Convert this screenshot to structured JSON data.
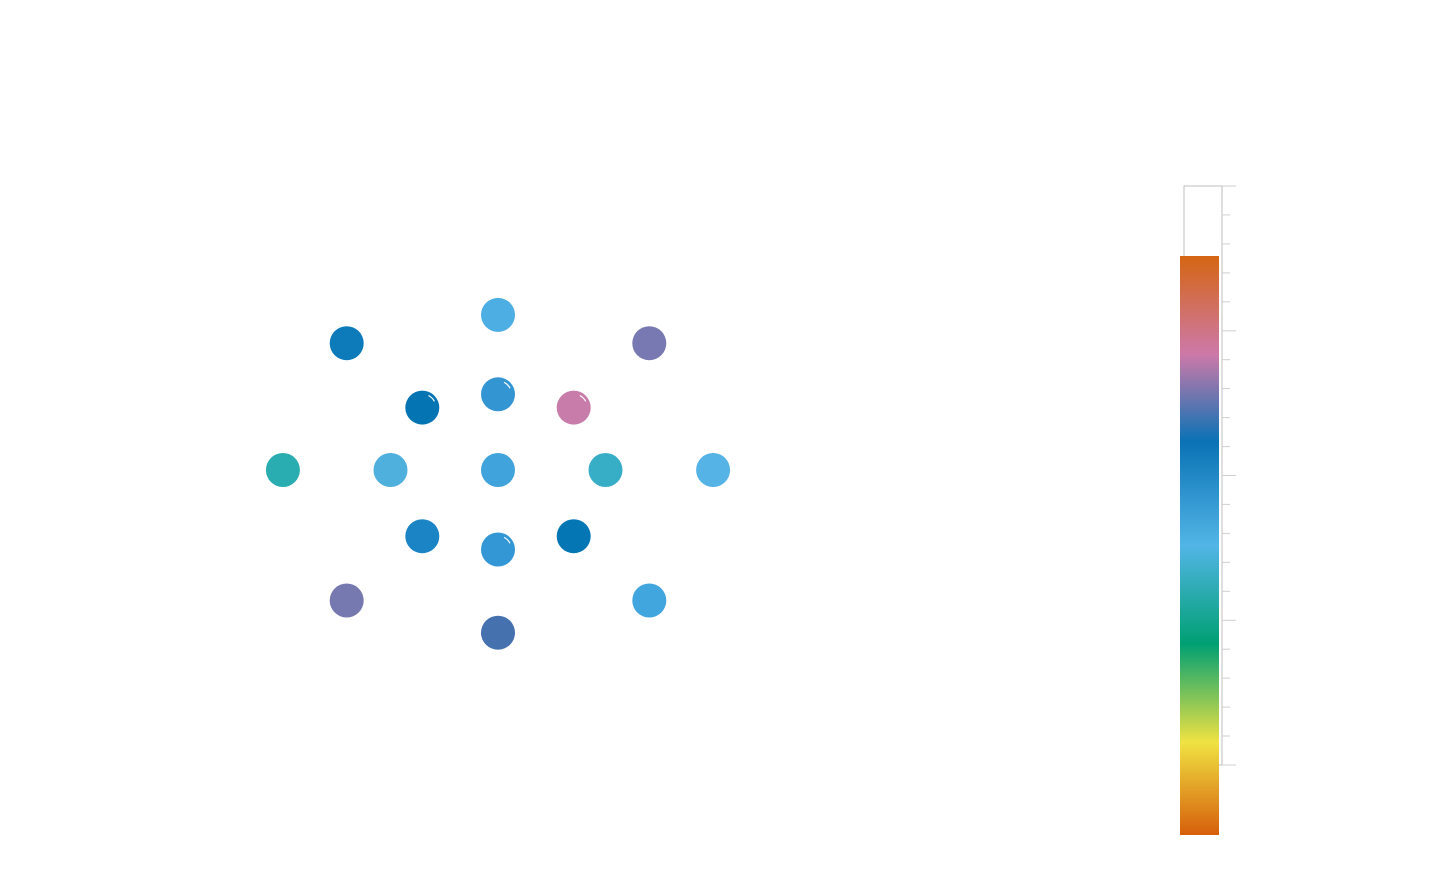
{
  "chart_data": {
    "type": "scatter",
    "title": "",
    "xlabel": "",
    "ylabel": "",
    "grid": false,
    "legend": "none",
    "xlim": [
      -2.3,
      2.3
    ],
    "ylim": [
      -1.85,
      1.85
    ],
    "colorbar": {
      "placement": "right",
      "range": [
        0,
        1
      ],
      "stops": [
        {
          "offset": 0.0,
          "color": "#d56513"
        },
        {
          "offset": 0.17,
          "color": "#cd79a9"
        },
        {
          "offset": 0.32,
          "color": "#0a72b5"
        },
        {
          "offset": 0.5,
          "color": "#52b5e6"
        },
        {
          "offset": 0.67,
          "color": "#00a073"
        },
        {
          "offset": 0.84,
          "color": "#f0e242"
        },
        {
          "offset": 1.0,
          "color": "#d65f0b"
        }
      ]
    },
    "points": [
      {
        "x": 0.0,
        "y": 0.0,
        "value": 0.46,
        "color": "#40a3dc"
      },
      {
        "x": 0.0,
        "y": 0.4,
        "value": 0.44,
        "color": "#3495d3",
        "marker": "ring"
      },
      {
        "x": -0.38,
        "y": 0.33,
        "value": 0.34,
        "color": "#0574b2",
        "marker": "ring"
      },
      {
        "x": 0.38,
        "y": 0.33,
        "value": 0.17,
        "color": "#c77ca9",
        "marker": "ring"
      },
      {
        "x": -0.54,
        "y": 0.0,
        "value": 0.49,
        "color": "#4fb0dd"
      },
      {
        "x": 0.54,
        "y": 0.0,
        "value": 0.56,
        "color": "#38aec6"
      },
      {
        "x": -0.38,
        "y": -0.35,
        "value": 0.38,
        "color": "#1a84c4"
      },
      {
        "x": 0.38,
        "y": -0.35,
        "value": 0.34,
        "color": "#0476b4"
      },
      {
        "x": 0.0,
        "y": -0.42,
        "value": 0.43,
        "color": "#3397d5",
        "marker": "ring"
      },
      {
        "x": 0.0,
        "y": 0.82,
        "value": 0.48,
        "color": "#4daee4"
      },
      {
        "x": -0.76,
        "y": 0.67,
        "value": 0.35,
        "color": "#0d7aba"
      },
      {
        "x": 0.76,
        "y": 0.67,
        "value": 0.24,
        "color": "#7878b2"
      },
      {
        "x": -1.08,
        "y": 0.0,
        "value": 0.62,
        "color": "#2aadb0"
      },
      {
        "x": 1.08,
        "y": 0.0,
        "value": 0.49,
        "color": "#55b3e6"
      },
      {
        "x": -0.76,
        "y": -0.69,
        "value": 0.24,
        "color": "#7679b0"
      },
      {
        "x": 0.76,
        "y": -0.69,
        "value": 0.45,
        "color": "#41a5de"
      },
      {
        "x": 0.0,
        "y": -0.86,
        "value": 0.29,
        "color": "#4572af"
      }
    ]
  }
}
